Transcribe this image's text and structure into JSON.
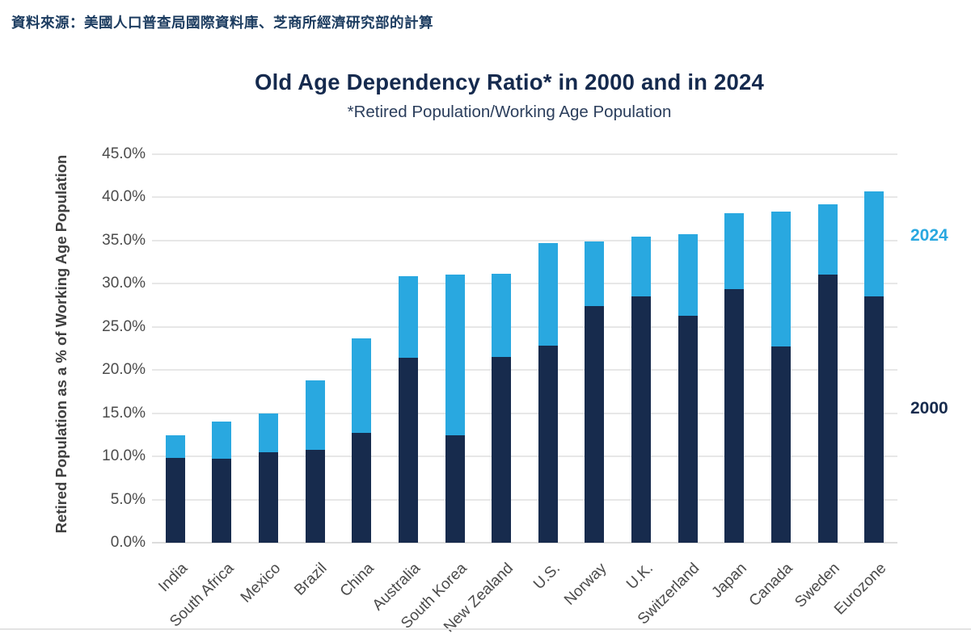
{
  "source": {
    "text": "資料來源：美國人口普查局國際資料庫、芝商所經濟研究部的計算"
  },
  "header": {
    "title": "Old Age Dependency Ratio* in 2000 and in 2024",
    "subtitle": "*Retired Population/Working Age Population"
  },
  "colors": {
    "bar_2000_navy": "#172b4d",
    "bar_2024_blue": "#29a8e0",
    "title_navy": "#152a4e",
    "source_text_navy": "#1c3c60",
    "axis_text_gray": "#4a4a4a",
    "gridline_gray": "#e7e7e7"
  },
  "chart_data": {
    "type": "bar",
    "title": "Old Age Dependency Ratio* in 2000 and in 2024",
    "subtitle": "*Retired Population/Working Age Population",
    "ylabel": "Retired Population as a % of Working Age Population",
    "xlabel": "",
    "ylim": [
      0,
      45
    ],
    "yticks": [
      "45.0%",
      "40.0%",
      "35.0%",
      "30.0%",
      "25.0%",
      "20.0%",
      "15.0%",
      "10.0%",
      "5.0%",
      "0.0%"
    ],
    "grid": true,
    "legend_position": "right",
    "bar_style": "overlaid: 2024 bar drawn behind, 2000 bar in front, blue visible as top segment",
    "categories": [
      "India",
      "South Africa",
      "Mexico",
      "Brazil",
      "China",
      "Australia",
      "South Korea",
      "New Zealand",
      "U.S.",
      "Norway",
      "U.K.",
      "Switzerland",
      "Japan",
      "Canada",
      "Sweden",
      "Eurozone"
    ],
    "series": [
      {
        "name": "2000",
        "color": "#172b4d",
        "values": [
          9.8,
          9.7,
          10.5,
          10.8,
          12.7,
          21.4,
          12.4,
          21.5,
          22.8,
          27.4,
          28.5,
          26.3,
          29.4,
          22.7,
          31.1,
          28.5
        ]
      },
      {
        "name": "2024",
        "color": "#29a8e0",
        "values": [
          12.4,
          14.0,
          15.0,
          18.8,
          23.7,
          30.9,
          31.1,
          31.2,
          34.7,
          34.9,
          35.5,
          35.7,
          38.2,
          38.4,
          39.2,
          40.7
        ]
      }
    ]
  }
}
